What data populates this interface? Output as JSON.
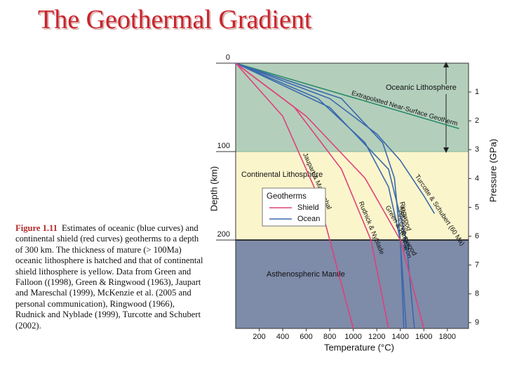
{
  "slide": {
    "title": "The Geothermal Gradient",
    "caption": {
      "label": "Figure 1.11",
      "text": "Estimates of oceanic (blue curves) and continental shield (red curves) geotherms to a depth of 300 km. The thickness of mature (> 100Ma) oceanic lithosphere is hatched and that of continental shield lithosphere is yellow. Data from Green and Falloon ((1998), Green & Ringwood (1963), Jaupart and Mareschal (1999), McKenzie et al. (2005 and personal communication), Ringwood (1966), Rudnick and Nyblade (1999), Turcotte and Schubert (2002)."
    }
  },
  "chart_data": {
    "type": "line",
    "x_label": "Temperature (°C)",
    "y_label": "Depth (km)",
    "y2_label": "Pressure (GPa)",
    "xlim": [
      0,
      1980
    ],
    "xticks": [
      200,
      400,
      600,
      800,
      1000,
      1200,
      1400,
      1600,
      1800
    ],
    "ylim": [
      300,
      0
    ],
    "yticks": [
      0,
      100,
      200
    ],
    "y2lim": [
      9.2,
      0
    ],
    "y2ticks": [
      1,
      2,
      3,
      4,
      5,
      6,
      7,
      8,
      9
    ],
    "regions": [
      {
        "label": "Oceanic Lithosphere",
        "from": 0,
        "to": 100,
        "color": "#b3cfbb"
      },
      {
        "label": "Continental Lithosphere",
        "from": 100,
        "to": 200,
        "color": "#fbf5cc"
      },
      {
        "label": "Asthenospheric Mantle",
        "from": 200,
        "to": 300,
        "color": "#7e8ba9"
      }
    ],
    "legend": {
      "title": "Geotherms",
      "entries": [
        {
          "name": "Shield",
          "color": "#e0407a"
        },
        {
          "name": "Ocean",
          "color": "#3a68ad"
        }
      ]
    },
    "series": [
      {
        "name": "Extrapolated Near-Surface Geotherm",
        "color": "#2a8a6a",
        "x": [
          0,
          1900
        ],
        "y": [
          0,
          74
        ]
      },
      {
        "name": "Turcotte & Schubert (60 Ma)",
        "color": "#3a68ad",
        "x": [
          0,
          800,
          1200,
          1400,
          1600,
          1690
        ],
        "y": [
          0,
          40,
          80,
          110,
          150,
          170
        ]
      },
      {
        "name": "Green & Falloon",
        "color": "#3a68ad",
        "x": [
          0,
          700,
          1100,
          1300,
          1400,
          1450
        ],
        "y": [
          0,
          40,
          90,
          140,
          200,
          300
        ]
      },
      {
        "name": "McKenzie et al.",
        "color": "#3a68ad",
        "x": [
          0,
          900,
          1250,
          1350,
          1400,
          1430
        ],
        "y": [
          0,
          40,
          90,
          130,
          200,
          300
        ]
      },
      {
        "name": "Ringwood",
        "color": "#3a68ad",
        "x": [
          0,
          800,
          1300,
          1450,
          1520
        ],
        "y": [
          0,
          50,
          120,
          200,
          300
        ]
      },
      {
        "name": "Rudnick & Nyblade",
        "color": "#e0407a",
        "x": [
          0,
          500,
          900,
          1150,
          1300
        ],
        "y": [
          0,
          50,
          120,
          200,
          300
        ]
      },
      {
        "name": "Jaupart & Mareschal",
        "color": "#e0407a",
        "x": [
          0,
          400,
          700,
          1000
        ],
        "y": [
          0,
          60,
          150,
          300
        ]
      },
      {
        "name": "Green & Ringwood",
        "color": "#e0407a",
        "x": [
          0,
          600,
          1100,
          1400,
          1600
        ],
        "y": [
          0,
          60,
          130,
          200,
          300
        ]
      }
    ]
  }
}
